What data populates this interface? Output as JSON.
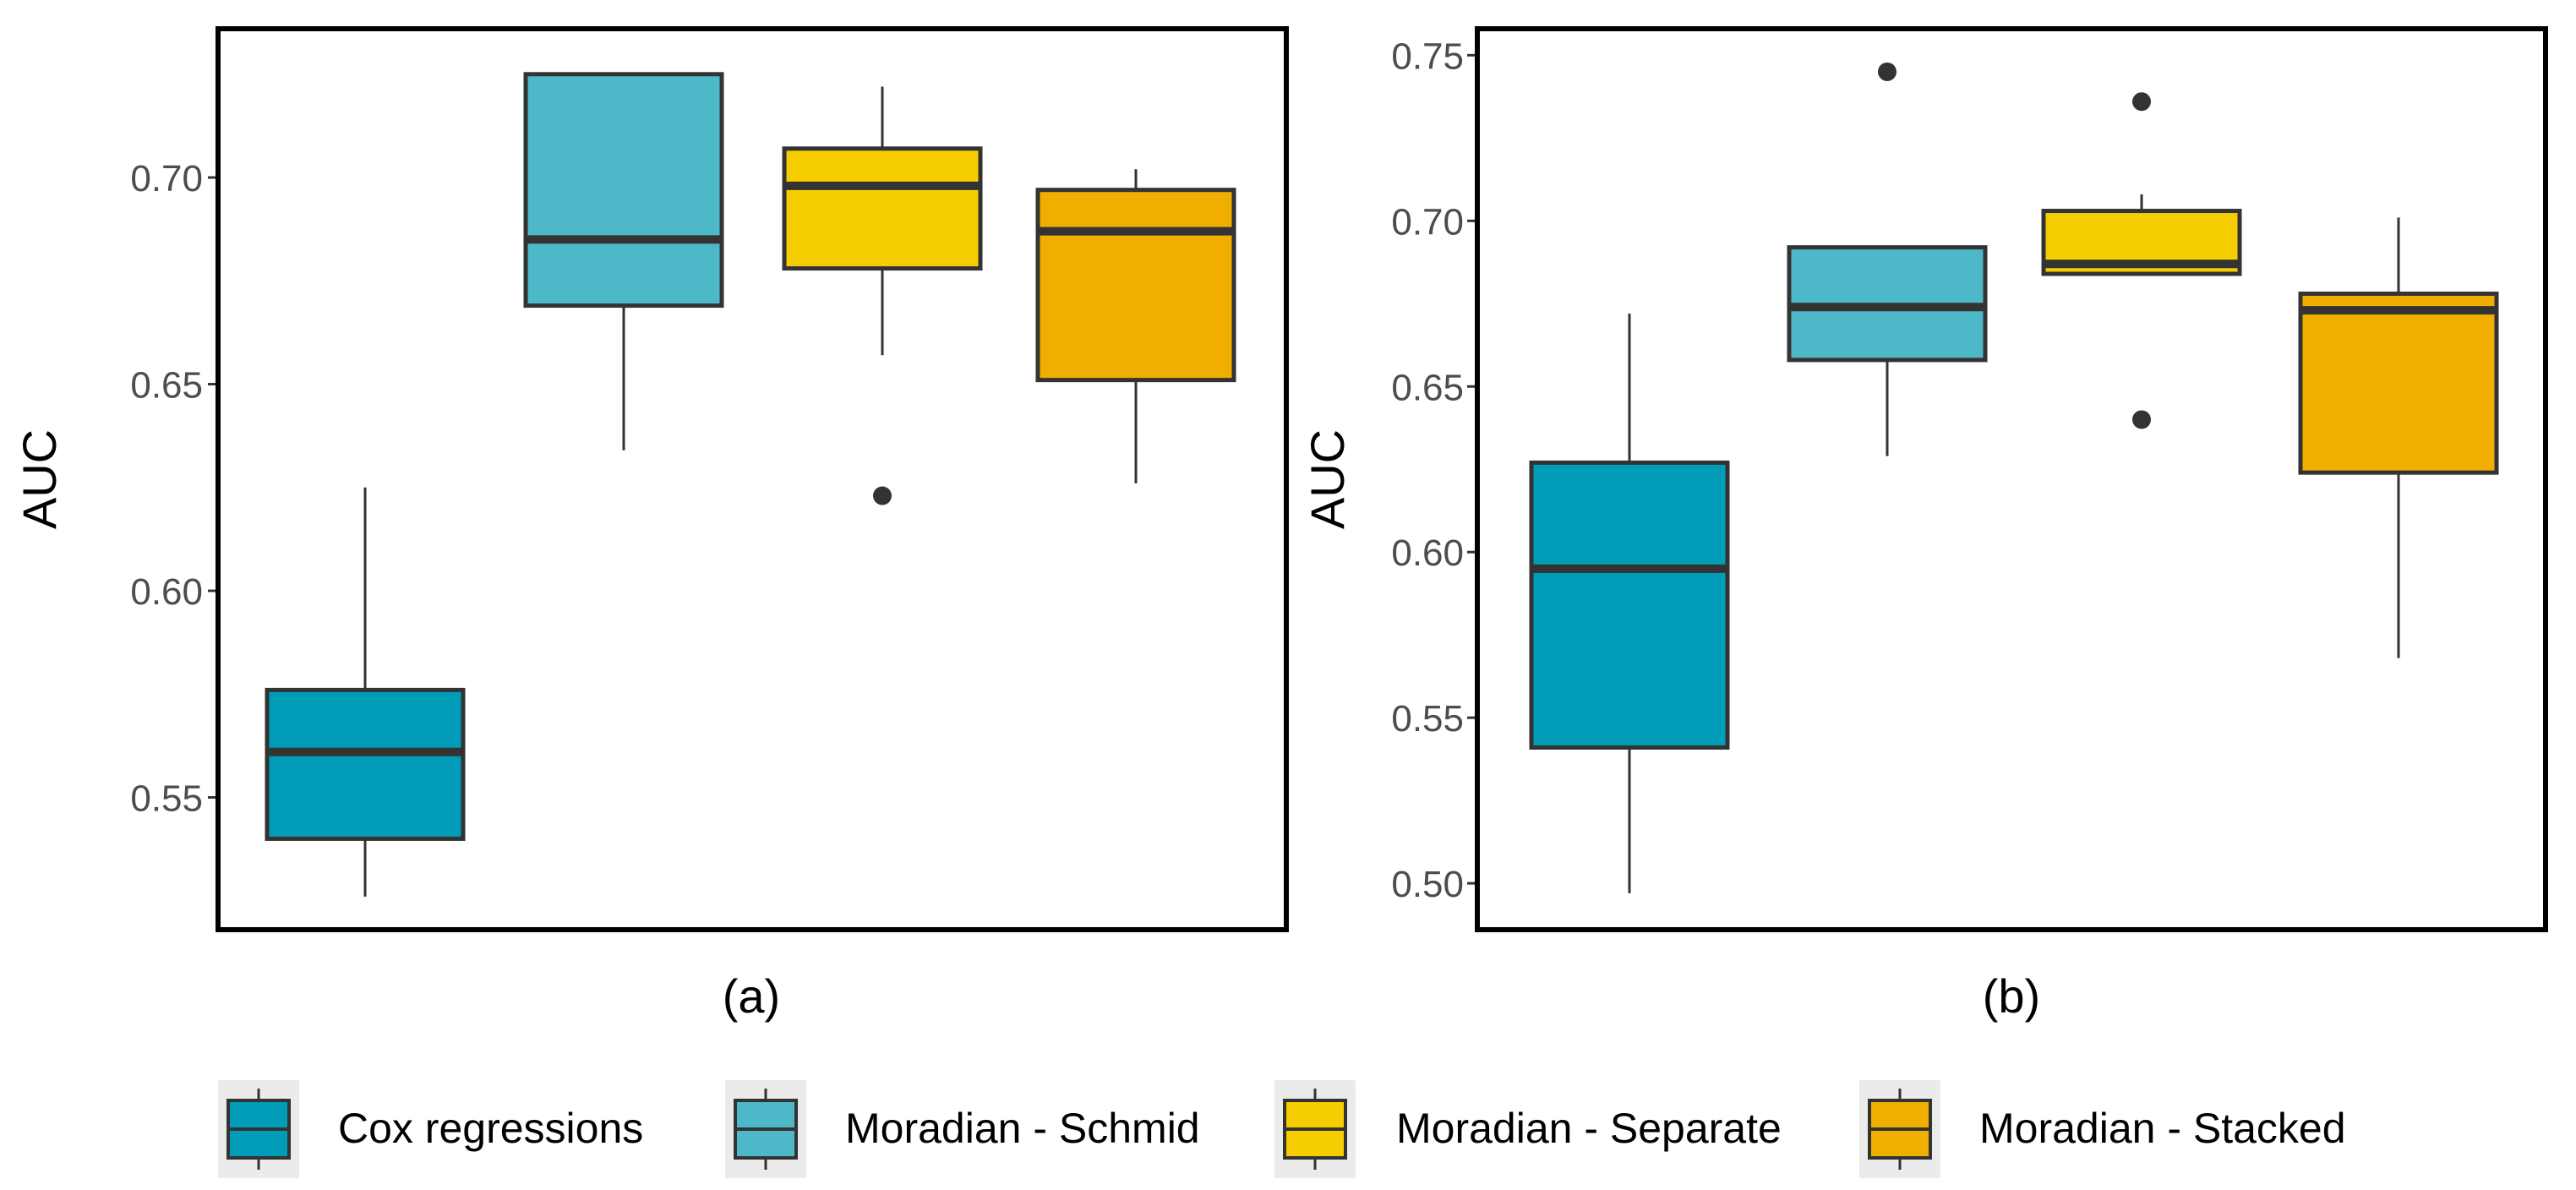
{
  "chart_data": [
    {
      "type": "box",
      "xlabel": "(a)",
      "ylabel": "AUC",
      "ylim": [
        0.518,
        0.736
      ],
      "yticks": [
        0.55,
        0.6,
        0.65,
        0.7
      ],
      "ytick_labels": [
        "0.55",
        "0.60",
        "0.65",
        "0.70"
      ],
      "grid": false,
      "series": [
        {
          "name": "Cox regressions",
          "whisker_low": 0.526,
          "q1": 0.54,
          "median": 0.561,
          "q3": 0.576,
          "whisker_high": 0.625,
          "outliers": []
        },
        {
          "name": "Moradian - Schmid",
          "whisker_low": 0.634,
          "q1": 0.669,
          "median": 0.685,
          "q3": 0.725,
          "whisker_high": 0.725,
          "outliers": []
        },
        {
          "name": "Moradian - Separate",
          "whisker_low": 0.657,
          "q1": 0.678,
          "median": 0.698,
          "q3": 0.707,
          "whisker_high": 0.722,
          "outliers": [
            0.623
          ]
        },
        {
          "name": "Moradian - Stacked",
          "whisker_low": 0.626,
          "q1": 0.651,
          "median": 0.687,
          "q3": 0.697,
          "whisker_high": 0.702,
          "outliers": []
        }
      ]
    },
    {
      "type": "box",
      "xlabel": "(b)",
      "ylabel": "AUC",
      "ylim": [
        0.486,
        0.758
      ],
      "yticks": [
        0.5,
        0.55,
        0.6,
        0.65,
        0.7,
        0.75
      ],
      "ytick_labels": [
        "0.50",
        "0.55",
        "0.60",
        "0.65",
        "0.70",
        "0.75"
      ],
      "grid": false,
      "series": [
        {
          "name": "Cox regressions",
          "whisker_low": 0.497,
          "q1": 0.541,
          "median": 0.595,
          "q3": 0.627,
          "whisker_high": 0.672,
          "outliers": []
        },
        {
          "name": "Moradian - Schmid",
          "whisker_low": 0.629,
          "q1": 0.658,
          "median": 0.674,
          "q3": 0.692,
          "whisker_high": 0.692,
          "outliers": [
            0.745
          ]
        },
        {
          "name": "Moradian - Separate",
          "whisker_low": 0.684,
          "q1": 0.684,
          "median": 0.687,
          "q3": 0.703,
          "whisker_high": 0.708,
          "outliers": [
            0.736,
            0.64
          ]
        },
        {
          "name": "Moradian - Stacked",
          "whisker_low": 0.568,
          "q1": 0.624,
          "median": 0.673,
          "q3": 0.678,
          "whisker_high": 0.701,
          "outliers": []
        }
      ]
    }
  ],
  "legend": {
    "placement": "bottom",
    "items": [
      {
        "label": "Cox regressions",
        "color": "#009CB8"
      },
      {
        "label": "Moradian - Schmid",
        "color": "#4DB8C8"
      },
      {
        "label": "Moradian - Separate",
        "color": "#F5CD00"
      },
      {
        "label": "Moradian - Stacked",
        "color": "#F0AE00"
      }
    ]
  },
  "colors": {
    "box_stroke": "#333333",
    "frame": "#000000",
    "tick_label": "#4d4d4d",
    "legend_key_bg": "#ebebeb"
  }
}
